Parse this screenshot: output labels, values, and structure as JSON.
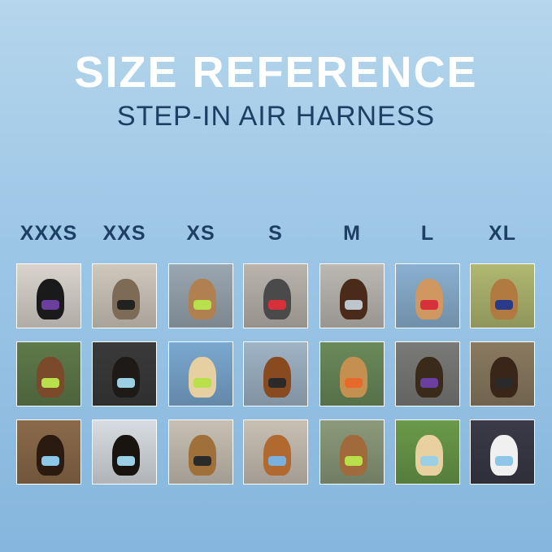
{
  "title": "SIZE REFERENCE",
  "subtitle": "STEP-IN AIR HARNESS",
  "sizes": [
    {
      "label": "XXXS",
      "photos": [
        {
          "bg": "#d9d4cc",
          "dog": "#1a1a1a",
          "harness": "#6b3fa0"
        },
        {
          "bg": "#5f7a4a",
          "dog": "#7a4a2a",
          "harness": "#b8e04a"
        },
        {
          "bg": "#8b6a4a",
          "dog": "#2a1a10",
          "harness": "#8cc6e8"
        }
      ]
    },
    {
      "label": "XXS",
      "photos": [
        {
          "bg": "#cfc8bd",
          "dog": "#7d6b55",
          "harness": "#222222"
        },
        {
          "bg": "#3a3a3a",
          "dog": "#1e1a18",
          "harness": "#9ad0e6"
        },
        {
          "bg": "#d8dde2",
          "dog": "#1a1410",
          "harness": "#9ad0e6"
        }
      ]
    },
    {
      "label": "XS",
      "photos": [
        {
          "bg": "#9aa6b0",
          "dog": "#b08050",
          "harness": "#b8e04a"
        },
        {
          "bg": "#7aa8d0",
          "dog": "#e6cfa0",
          "harness": "#b8e04a"
        },
        {
          "bg": "#c8c0b4",
          "dog": "#a0703a",
          "harness": "#2a2a2a"
        }
      ]
    },
    {
      "label": "S",
      "photos": [
        {
          "bg": "#b9b4ac",
          "dog": "#4a4a4a",
          "harness": "#d8303a"
        },
        {
          "bg": "#9fb4c6",
          "dog": "#8a4a20",
          "harness": "#2a2a2a"
        },
        {
          "bg": "#c9c0b4",
          "dog": "#b06a30",
          "harness": "#7ab0e0"
        }
      ]
    },
    {
      "label": "M",
      "photos": [
        {
          "bg": "#bcb8b2",
          "dog": "#4a2a18",
          "harness": "#bcc6cc"
        },
        {
          "bg": "#6a8a5a",
          "dog": "#c49050",
          "harness": "#e86a2a"
        },
        {
          "bg": "#8a9a7a",
          "dog": "#a06a3a",
          "harness": "#b8e04a"
        }
      ]
    },
    {
      "label": "L",
      "photos": [
        {
          "bg": "#8ab0d0",
          "dog": "#d09860",
          "harness": "#d8303a"
        },
        {
          "bg": "#7a7a78",
          "dog": "#3a2a1a",
          "harness": "#6b3fa0"
        },
        {
          "bg": "#6a9a4a",
          "dog": "#e8d0a0",
          "harness": "#9ad0e6"
        }
      ]
    },
    {
      "label": "XL",
      "photos": [
        {
          "bg": "#b0b870",
          "dog": "#b07a40",
          "harness": "#2a3a8a"
        },
        {
          "bg": "#8a7a60",
          "dog": "#3a2618",
          "harness": "#2a2a2a"
        },
        {
          "bg": "#3a3a48",
          "dog": "#f0f0f0",
          "harness": "#8cc6e8"
        }
      ]
    }
  ]
}
